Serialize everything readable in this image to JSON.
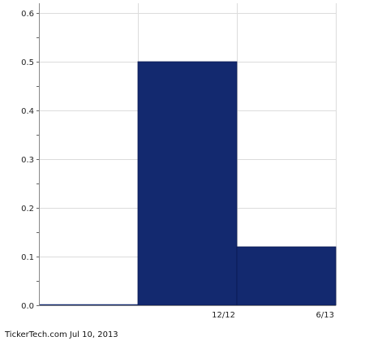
{
  "chart_data": {
    "type": "bar",
    "bins": [
      {
        "label": "",
        "value": 0.0
      },
      {
        "label": "12/12",
        "value": 0.5
      },
      {
        "label": "6/13",
        "value": 0.12
      }
    ],
    "x_tick_labels": [
      "12/12",
      "6/13"
    ],
    "y_tick_labels": [
      "0.0",
      "0.1",
      "0.2",
      "0.3",
      "0.4",
      "0.5",
      "0.6"
    ],
    "ylim": [
      0,
      0.62
    ],
    "grid": true,
    "bar_color": "#13296f",
    "title": "",
    "xlabel": "",
    "ylabel": ""
  },
  "footer": {
    "credit": "TickerTech.com  Jul 10, 2013"
  }
}
